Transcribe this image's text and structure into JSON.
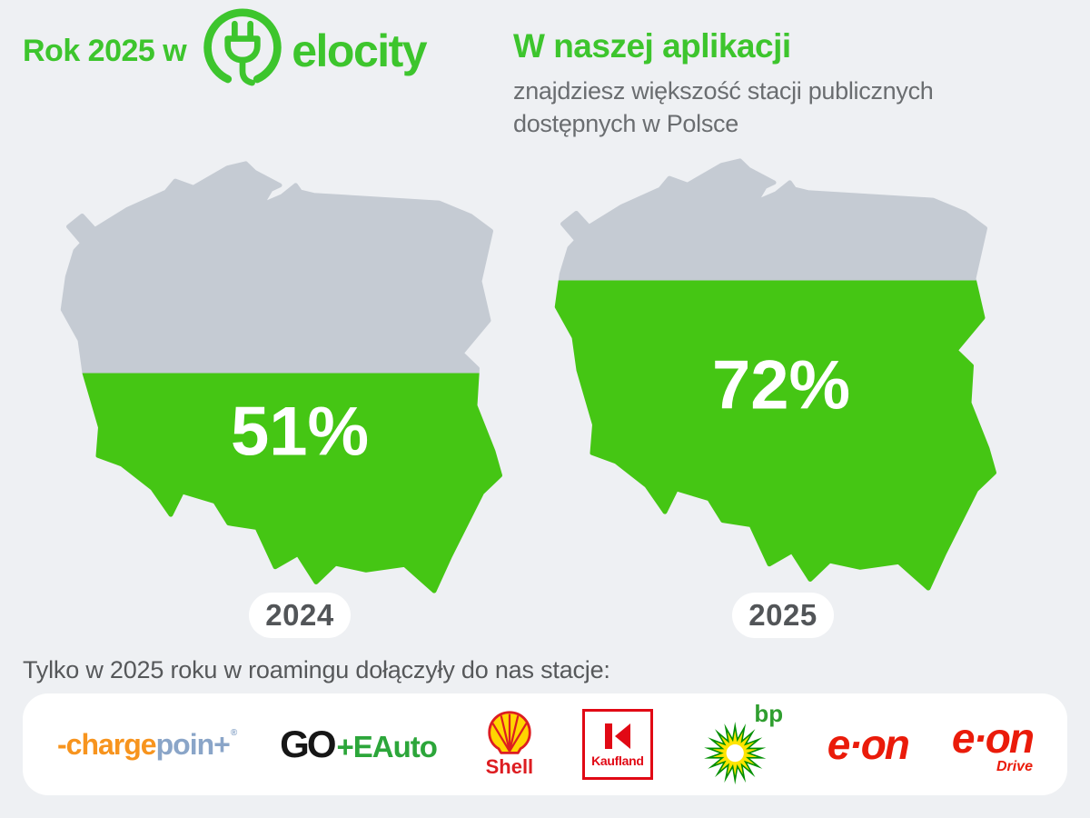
{
  "header": {
    "title_prefix": "Rok 2025 w",
    "brand": "elocity",
    "right_title": "W naszej aplikacji",
    "right_subtitle_line1": "znajdziesz większość stacji publicznych",
    "right_subtitle_line2": "dostępnych w Polsce"
  },
  "chart_data": {
    "type": "pictorial",
    "subtype": "filled-map-percentage",
    "region": "Poland",
    "categories": [
      "2024",
      "2025"
    ],
    "values": [
      51,
      72
    ],
    "unit": "%",
    "title": "Rok 2025 w elocity",
    "subtitle": "W naszej aplikacji znajdziesz większość stacji publicznych dostępnych w Polsce"
  },
  "maps": [
    {
      "year": "2024",
      "percent": 51,
      "percent_label": "51%"
    },
    {
      "year": "2025",
      "percent": 72,
      "percent_label": "72%"
    }
  ],
  "footer": {
    "text": "Tylko w 2025 roku w roamingu dołączyły do nas stacje:",
    "partners": [
      "ChargePoint",
      "GO+EAuto",
      "Shell",
      "Kaufland",
      "bp",
      "e.on",
      "e.on Drive"
    ]
  },
  "partners_bar": {
    "chargepoint": {
      "part1": "-charge",
      "part2": "poin+",
      "reg": "®"
    },
    "goeauto": {
      "part1": "GO",
      "part2": "+EAuto"
    },
    "shell": {
      "label": "Shell"
    },
    "kaufland": {
      "label": "Kaufland"
    },
    "bp": {
      "label": "bp"
    },
    "eon": {
      "label": "e·on"
    },
    "eon_drive": {
      "label": "e·on",
      "sub": "Drive"
    }
  },
  "colors": {
    "background": "#eef0f3",
    "accent_green": "#3dc52d",
    "map_green": "#45c614",
    "map_gray": "#c5cbd3",
    "subtitle_gray": "#6a6d70",
    "footer_text": "#56585a",
    "pill_text": "#525558",
    "white": "#ffffff",
    "chargepoint_orange": "#f7941e",
    "chargepoint_blue": "#8aa5c8",
    "go_black": "#161616",
    "go_green": "#2ca63a",
    "shell_red": "#dd1d21",
    "shell_yellow": "#ffd500",
    "kaufland_red": "#e10915",
    "bp_green": "#008f00",
    "bp_yellow": "#ffe400",
    "eon_red": "#ea1b0a"
  }
}
